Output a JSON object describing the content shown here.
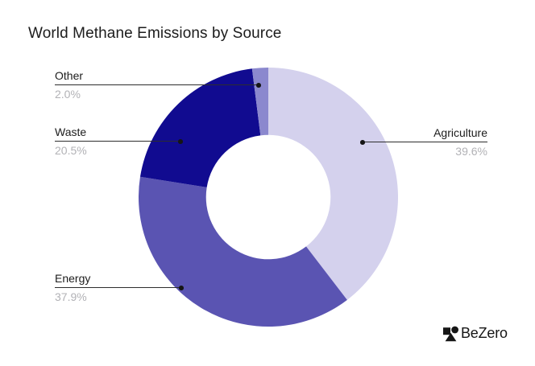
{
  "title": "World Methane Emissions by Source",
  "chart_data": {
    "type": "pie",
    "subtype": "donut",
    "title": "World Methane Emissions by Source",
    "categories": [
      "Agriculture",
      "Energy",
      "Waste",
      "Other"
    ],
    "values": [
      39.6,
      37.9,
      20.5,
      2.0
    ],
    "value_labels": [
      "39.6%",
      "37.9%",
      "20.5%",
      "2.0%"
    ],
    "colors": [
      "#d4d1ed",
      "#5a54b2",
      "#110b90",
      "#8b88ce"
    ],
    "start_angle_deg": 0,
    "direction": "clockwise",
    "inner_radius_ratio": 0.48,
    "legend_position": "outside-callouts",
    "grid": false
  },
  "styles": {
    "label_text_color": "#1c1c1c",
    "pct_text_color": "#b2b2b6",
    "leader_line_color": "#2d2d2d",
    "background": "#ffffff"
  },
  "logo": {
    "text": "BeZero",
    "icon": "bezero-shapes-icon"
  }
}
